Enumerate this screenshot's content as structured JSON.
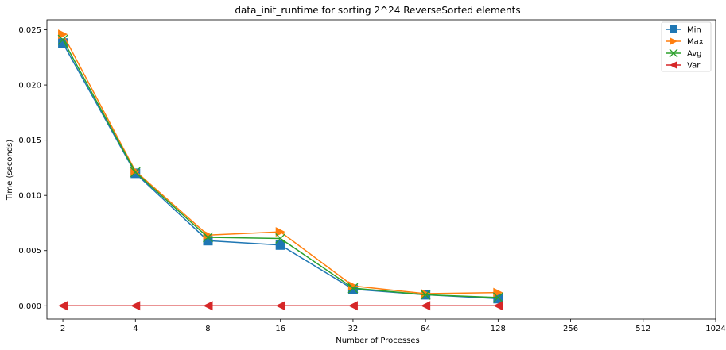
{
  "chart_data": {
    "type": "line",
    "title": "data_init_runtime for sorting 2^24 ReverseSorted elements",
    "xlabel": "Number of Processes",
    "ylabel": "Time (seconds)",
    "x_scale": "log2",
    "x_ticks": [
      2,
      4,
      8,
      16,
      32,
      64,
      128,
      256,
      512,
      1024
    ],
    "x_tick_labels": [
      "2",
      "4",
      "8",
      "16",
      "32",
      "64",
      "128",
      "256",
      "512",
      "1024"
    ],
    "xlim": [
      2,
      1024
    ],
    "y_ticks": [
      0.0,
      0.005,
      0.01,
      0.015,
      0.02,
      0.025
    ],
    "y_tick_labels": [
      "0.000",
      "0.005",
      "0.010",
      "0.015",
      "0.020",
      "0.025"
    ],
    "ylim": [
      -0.0012,
      0.0259
    ],
    "grid": false,
    "legend_position": "top-right",
    "series": [
      {
        "name": "Min",
        "color": "#1f77b4",
        "marker": "square",
        "x": [
          2,
          4,
          8,
          16,
          32,
          64,
          128
        ],
        "values": [
          0.0238,
          0.012,
          0.0059,
          0.0055,
          0.0015,
          0.001,
          0.00065
        ]
      },
      {
        "name": "Max",
        "color": "#ff7f0e",
        "marker": "triangle-right",
        "x": [
          2,
          4,
          8,
          16,
          32,
          64,
          128
        ],
        "values": [
          0.0246,
          0.0122,
          0.0064,
          0.0067,
          0.0018,
          0.0011,
          0.0012
        ]
      },
      {
        "name": "Avg",
        "color": "#2ca02c",
        "marker": "x",
        "x": [
          2,
          4,
          8,
          16,
          32,
          64,
          128
        ],
        "values": [
          0.0241,
          0.0121,
          0.0062,
          0.0061,
          0.0016,
          0.001,
          0.00075
        ]
      },
      {
        "name": "Var",
        "color": "#d62728",
        "marker": "triangle-left",
        "x": [
          2,
          4,
          8,
          16,
          32,
          64,
          128
        ],
        "values": [
          0.0,
          0.0,
          0.0,
          0.0,
          0.0,
          0.0,
          0.0
        ]
      }
    ]
  }
}
